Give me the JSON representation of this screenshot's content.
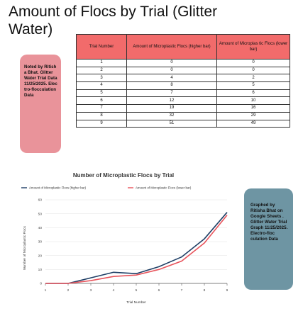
{
  "title": "Amount of Flocs by Trial (Glitter Water)",
  "note_left": "Noted by Ritisha Bhat. Glitter Water Trial Data 11/25/2025. Electro-flocculation Data",
  "note_right": "Graphed by Ritisha Bhat on Google Sheets . Glitter Water Trial Graph 11/25/2025. Electro-floc culation Data",
  "table": {
    "headers": [
      "Trial Number",
      "Amount of Microplastic Flocs (higher bar)",
      "Amount of Microplas tic Flocs (lower bar)"
    ],
    "rows": [
      [
        "1",
        "0",
        "0"
      ],
      [
        "2",
        "0",
        "0"
      ],
      [
        "3",
        "4",
        "2"
      ],
      [
        "4",
        "8",
        "5"
      ],
      [
        "5",
        "7",
        "6"
      ],
      [
        "6",
        "12",
        "10"
      ],
      [
        "7",
        "19",
        "16"
      ],
      [
        "8",
        "32",
        "29"
      ],
      [
        "9",
        "51",
        "49"
      ]
    ]
  },
  "chart_data": {
    "type": "line",
    "title": "Number of Microplastic Flocs by Trial",
    "xlabel": "Trial Number",
    "ylabel": "Number of Microplastic Flocs",
    "x": [
      1,
      2,
      3,
      4,
      5,
      6,
      7,
      8,
      9
    ],
    "xlim": [
      1,
      9
    ],
    "ylim": [
      0,
      60
    ],
    "yticks": [
      0,
      10,
      20,
      30,
      40,
      50,
      60
    ],
    "xticks": [
      1,
      2,
      3,
      4,
      5,
      6,
      7,
      8,
      9
    ],
    "grid": true,
    "legend": "top-left",
    "series": [
      {
        "name": "Amount of Microplastic Flocs (higher bar)",
        "color": "#1f3f66",
        "values": [
          0,
          0,
          4,
          8,
          7,
          12,
          19,
          32,
          51
        ]
      },
      {
        "name": "Amount of Microplastic Flocs (lower bar)",
        "color": "#e8545c",
        "values": [
          0,
          0,
          2,
          5,
          6,
          10,
          16,
          29,
          49
        ]
      }
    ]
  }
}
